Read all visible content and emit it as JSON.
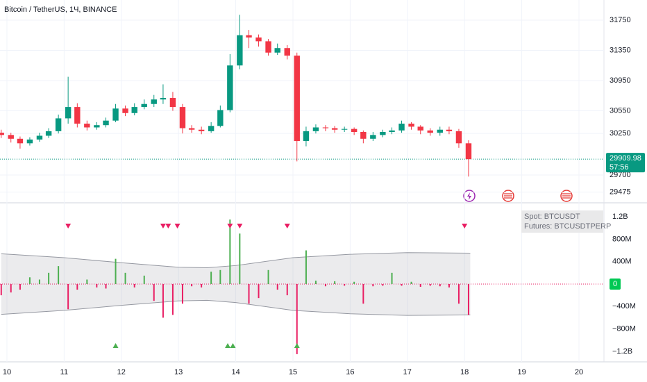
{
  "chart_data": [
    {
      "type": "candlestick",
      "title": "Bitcoin / TetherUS, 1Ч, BINANCE",
      "x": [
        9.9,
        10.07,
        10.23,
        10.4,
        10.57,
        10.73,
        10.9,
        11.07,
        11.23,
        11.4,
        11.57,
        11.73,
        11.9,
        12.07,
        12.23,
        12.4,
        12.57,
        12.73,
        12.9,
        13.07,
        13.23,
        13.4,
        13.57,
        13.73,
        13.9,
        14.07,
        14.23,
        14.4,
        14.57,
        14.73,
        14.9,
        15.07,
        15.23,
        15.4,
        15.57,
        15.73,
        15.9,
        16.07,
        16.23,
        16.4,
        16.57,
        16.73,
        16.9,
        17.07,
        17.23,
        17.4,
        17.57,
        17.73,
        17.9,
        18.07
      ],
      "open": [
        30260,
        30230,
        30180,
        30120,
        30170,
        30220,
        30280,
        30450,
        30600,
        30380,
        30330,
        30360,
        30420,
        30580,
        30520,
        30600,
        30640,
        30700,
        30720,
        30600,
        30320,
        30300,
        30280,
        30350,
        30560,
        31150,
        31550,
        31520,
        31470,
        31320,
        31380,
        31280,
        30150,
        30280,
        30330,
        30320,
        30300,
        30310,
        30270,
        30180,
        30230,
        30270,
        30290,
        30380,
        30340,
        30290,
        30260,
        30300,
        30280,
        30120
      ],
      "high": [
        30300,
        30260,
        30210,
        30200,
        30260,
        30320,
        30500,
        31000,
        30650,
        30420,
        30400,
        30460,
        30640,
        30620,
        30650,
        30700,
        30760,
        30900,
        30800,
        30640,
        30360,
        30340,
        30400,
        30620,
        31300,
        31820,
        31620,
        31560,
        31500,
        31440,
        31420,
        31320,
        30340,
        30370,
        30360,
        30350,
        30340,
        30330,
        30290,
        30270,
        30300,
        30330,
        30420,
        30400,
        30360,
        30320,
        30340,
        30340,
        30310,
        30160
      ],
      "low": [
        30190,
        30130,
        30050,
        30090,
        30140,
        30190,
        30250,
        30380,
        30330,
        30290,
        30300,
        30330,
        30400,
        30480,
        30490,
        30570,
        30600,
        30640,
        30550,
        30250,
        30260,
        30240,
        30260,
        30330,
        30530,
        31100,
        31380,
        31400,
        31280,
        31290,
        31230,
        29880,
        30080,
        30250,
        30280,
        30260,
        30270,
        30230,
        30120,
        30150,
        30200,
        30240,
        30260,
        30300,
        30240,
        30220,
        30220,
        30240,
        30060,
        29680
      ],
      "close": [
        30230,
        30180,
        30120,
        30170,
        30220,
        30280,
        30450,
        30600,
        30380,
        30330,
        30360,
        30420,
        30580,
        30520,
        30600,
        30640,
        30700,
        30720,
        30600,
        30320,
        30300,
        30280,
        30350,
        30560,
        31150,
        31550,
        31520,
        31470,
        31320,
        31380,
        31280,
        30150,
        30280,
        30330,
        30320,
        30300,
        30310,
        30270,
        30180,
        30230,
        30270,
        30290,
        30380,
        30340,
        30290,
        30260,
        30300,
        30280,
        30120,
        29910
      ],
      "up_color": "#089981",
      "down_color": "#f23645",
      "xlim": [
        9.879,
        20.437
      ],
      "xticks": [
        10,
        11,
        12,
        13,
        14,
        15,
        16,
        17,
        18,
        19,
        20
      ],
      "ylim": [
        29351,
        32016
      ],
      "yticks": [
        31750,
        31350,
        30950,
        30550,
        30250,
        29700,
        29475
      ],
      "last_price": 29909.98,
      "countdown": "57:56",
      "grid": true
    },
    {
      "type": "bar",
      "legend": [
        "Spot: BTCUSDT",
        "Futures: BTCUSDTPERP"
      ],
      "x": [
        9.9,
        10.07,
        10.23,
        10.4,
        10.57,
        10.73,
        10.9,
        11.07,
        11.23,
        11.4,
        11.57,
        11.73,
        11.9,
        12.07,
        12.23,
        12.4,
        12.57,
        12.73,
        12.9,
        13.07,
        13.23,
        13.4,
        13.57,
        13.73,
        13.9,
        14.07,
        14.23,
        14.4,
        14.57,
        14.73,
        14.9,
        15.07,
        15.23,
        15.4,
        15.57,
        15.73,
        15.9,
        16.07,
        16.23,
        16.4,
        16.57,
        16.73,
        16.9,
        17.07,
        17.23,
        17.4,
        17.57,
        17.73,
        17.9,
        18.07
      ],
      "values": [
        -200000000,
        -150000000,
        -100000000,
        120000000,
        80000000,
        200000000,
        320000000,
        -450000000,
        -100000000,
        80000000,
        -60000000,
        -80000000,
        450000000,
        200000000,
        -60000000,
        150000000,
        -300000000,
        -600000000,
        -550000000,
        -350000000,
        -40000000,
        -60000000,
        220000000,
        250000000,
        1150000000,
        900000000,
        -350000000,
        -250000000,
        250000000,
        -100000000,
        -200000000,
        -1250000000,
        600000000,
        60000000,
        -40000000,
        50000000,
        -30000000,
        40000000,
        -350000000,
        -40000000,
        -30000000,
        200000000,
        -30000000,
        40000000,
        -50000000,
        -30000000,
        -40000000,
        -60000000,
        -350000000,
        -550000000
      ],
      "up_color": "#4caf50",
      "down_color": "#e91e63",
      "band_x": [
        9.9,
        11,
        12,
        13,
        13.5,
        14,
        15,
        16,
        17,
        18.1
      ],
      "band_upper": [
        540000000,
        470000000,
        380000000,
        300000000,
        290000000,
        330000000,
        470000000,
        530000000,
        560000000,
        550000000
      ],
      "band_lower": [
        -540000000,
        -470000000,
        -380000000,
        -300000000,
        -290000000,
        -330000000,
        -470000000,
        -530000000,
        -560000000,
        -550000000
      ],
      "signals_top": [
        11.07,
        12.73,
        12.82,
        12.98,
        13.9,
        14.07,
        14.9,
        18.0
      ],
      "signals_bottom": [
        11.9,
        13.86,
        13.95,
        15.07
      ],
      "ylim": [
        -1375000000,
        1436000000
      ],
      "yticks": [
        {
          "value": 1200000000,
          "label": "1.2B"
        },
        {
          "value": 800000000,
          "label": "800M"
        },
        {
          "value": 400000000,
          "label": "400M"
        },
        0,
        {
          "value": -400000000,
          "label": "−400M"
        },
        {
          "value": -800000000,
          "label": "−800M"
        },
        {
          "value": -1200000000,
          "label": "−1.2B"
        }
      ]
    }
  ]
}
